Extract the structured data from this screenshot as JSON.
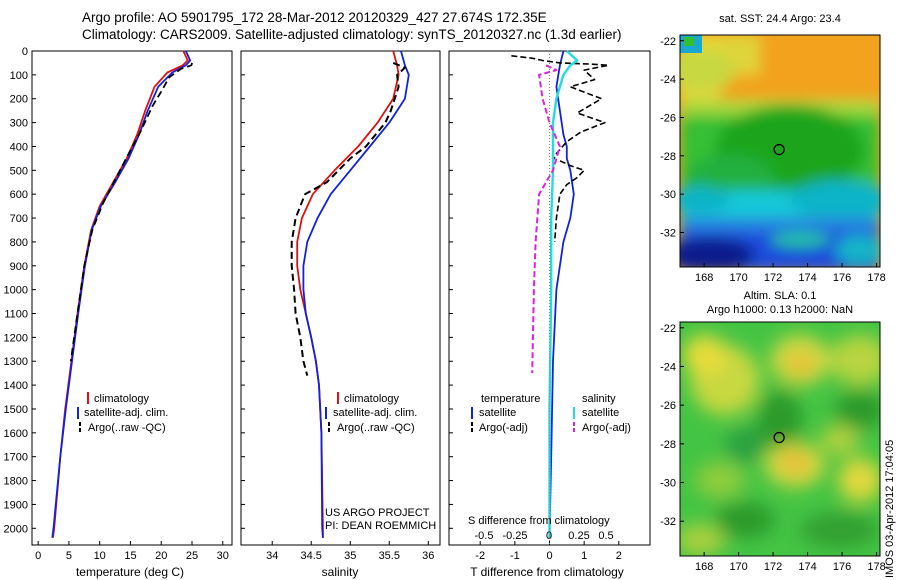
{
  "header": {
    "line1": "Argo profile: AO 5901795_172 28-Mar-2012 20120329_427 27.674S 172.35E",
    "line2": "Climatology: CARS2009. Satellite-adjusted climatology: synTS_20120327.nc (1.3d earlier)"
  },
  "side_stamp": "IMOS 03-Apr-2012 17:04:05",
  "colors": {
    "climatology": "#dd1111",
    "satellite": "#1122dd",
    "argo": "#000000",
    "salinity_satellite": "#22dddd",
    "salinity_argo": "#dd22dd",
    "map_orange": "#f2a21b",
    "map_yellow": "#e8d83a",
    "map_green": "#36c036",
    "map_cyan": "#18c8d8",
    "map_blue": "#1f4cdc",
    "map_navy": "#0a1e8c"
  },
  "depth_axis": {
    "ticks": [
      0,
      100,
      200,
      300,
      400,
      500,
      600,
      700,
      800,
      900,
      1000,
      1100,
      1200,
      1300,
      1400,
      1500,
      1600,
      1700,
      1800,
      1900,
      2000
    ],
    "range": [
      0,
      2070
    ]
  },
  "chart_data": [
    {
      "type": "line",
      "id": "temperature",
      "xlabel": "temperature (deg C)",
      "xlim": [
        -1,
        31.5
      ],
      "xticks": [
        0,
        5,
        10,
        15,
        20,
        25,
        30
      ],
      "legend": [
        "climatology",
        "satellite-adj. clim.",
        "Argo(..raw -QC)"
      ],
      "series": [
        {
          "name": "climatology",
          "x": [
            23.6,
            24.3,
            23.5,
            21.0,
            18.9,
            17.4,
            16.1,
            14.4,
            12.2,
            10.0,
            8.6,
            7.5,
            6.4,
            5.4,
            4.4,
            3.6,
            2.6,
            2.4
          ],
          "y": [
            0,
            40,
            60,
            90,
            150,
            250,
            350,
            450,
            550,
            650,
            750,
            900,
            1100,
            1300,
            1500,
            1700,
            2000,
            2040
          ]
        },
        {
          "name": "satellite-adj. clim.",
          "x": [
            24.0,
            24.7,
            24.0,
            21.8,
            19.5,
            17.8,
            16.4,
            14.7,
            12.5,
            10.2,
            8.7,
            7.6,
            6.5,
            5.5,
            4.5,
            3.6,
            2.5,
            2.3
          ],
          "y": [
            0,
            40,
            60,
            90,
            150,
            250,
            350,
            450,
            550,
            650,
            750,
            900,
            1100,
            1300,
            1500,
            1700,
            2000,
            2040
          ]
        },
        {
          "name": "Argo(..raw -QC)",
          "x": [
            25.0,
            24.9,
            23.2,
            21.3,
            20.0,
            18.6,
            16.6,
            14.3,
            12.5,
            10.5,
            8.8,
            7.5,
            6.4,
            5.3
          ],
          "y": [
            50,
            60,
            75,
            110,
            170,
            230,
            340,
            450,
            540,
            640,
            750,
            900,
            1100,
            1300
          ]
        }
      ]
    },
    {
      "type": "line",
      "id": "salinity",
      "xlabel": "salinity",
      "xlim": [
        33.6,
        36.15
      ],
      "xticks": [
        34,
        34.5,
        35,
        35.5,
        36
      ],
      "legend": [
        "climatology",
        "satellite-adj. clim.",
        "Argo(..raw -QC)"
      ],
      "annotations": [
        "US ARGO PROJECT",
        "PI: DEAN ROEMMICH"
      ],
      "series": [
        {
          "name": "climatology",
          "x": [
            35.55,
            35.6,
            35.62,
            35.55,
            35.35,
            35.1,
            34.8,
            34.52,
            34.38,
            34.32,
            34.32,
            34.36,
            34.43,
            34.5,
            34.56,
            34.6,
            34.63,
            34.65,
            34.65
          ],
          "y": [
            0,
            60,
            100,
            200,
            300,
            400,
            500,
            600,
            700,
            800,
            900,
            1000,
            1100,
            1200,
            1300,
            1400,
            1600,
            2000,
            2040
          ]
        },
        {
          "name": "satellite-adj. clim.",
          "x": [
            35.65,
            35.7,
            35.75,
            35.7,
            35.5,
            35.25,
            35.0,
            34.75,
            34.58,
            34.45,
            34.4,
            34.4,
            34.43,
            34.5,
            34.56,
            34.6,
            34.63,
            34.64,
            34.65
          ],
          "y": [
            0,
            60,
            100,
            200,
            300,
            400,
            500,
            600,
            700,
            800,
            900,
            1000,
            1100,
            1200,
            1300,
            1400,
            1600,
            2000,
            2040
          ]
        },
        {
          "name": "Argo(..raw -QC)",
          "x": [
            35.55,
            35.7,
            35.6,
            35.62,
            35.52,
            35.45,
            35.2,
            35.0,
            34.7,
            34.42,
            34.3,
            34.25,
            34.25,
            34.28,
            34.3,
            34.36,
            34.4,
            34.45
          ],
          "y": [
            50,
            70,
            100,
            150,
            250,
            300,
            400,
            450,
            550,
            600,
            700,
            800,
            900,
            1000,
            1100,
            1200,
            1300,
            1360
          ]
        }
      ]
    },
    {
      "type": "line",
      "id": "difference",
      "xlabel": "T difference from climatology",
      "xlabel_top": "S difference from climatology",
      "xlim": [
        -2.9,
        2.9
      ],
      "xticks": [
        -2,
        -1,
        0,
        1,
        2
      ],
      "xticks_s": [
        "-0.5",
        "-0.25",
        "0",
        "0.25",
        "0.5"
      ],
      "legend_titles": [
        "temperature",
        "salinity"
      ],
      "legend": [
        "satellite",
        "Argo(-adj)",
        "satellite",
        "Argo(-adj)"
      ],
      "series": [
        {
          "name": "satellite",
          "x": [
            0.4,
            0.3,
            0.2,
            0.3,
            0.4,
            0.5,
            0.5,
            0.6,
            0.7,
            0.6,
            0.4,
            0.2,
            0.1,
            0.05,
            0.0
          ],
          "y": [
            0,
            60,
            150,
            250,
            350,
            400,
            450,
            500,
            600,
            700,
            800,
            1000,
            1300,
            1700,
            2040
          ]
        },
        {
          "name": "Argo(-adj)",
          "x": [
            -1.1,
            -0.5,
            -0.2,
            0.3,
            1.2,
            1.7,
            1.0,
            1.3,
            0.6,
            1.5,
            0.8,
            1.6,
            0.9,
            0.5,
            0.2,
            0.1
          ],
          "y": [
            20,
            30,
            40,
            50,
            55,
            60,
            80,
            120,
            150,
            200,
            260,
            300,
            340,
            380,
            430,
            460
          ]
        },
        {
          "name": "salinity satellite",
          "x": [
            0.5,
            0.8,
            0.6,
            0.4,
            0.2,
            0.1,
            0.1,
            0.1,
            0.05,
            0.05,
            0.0,
            0.0
          ],
          "y": [
            0,
            40,
            60,
            100,
            200,
            300,
            400,
            500,
            700,
            1000,
            1500,
            2040
          ]
        },
        {
          "name": "salinity Argo(-adj)",
          "x": [
            -0.1,
            0.2,
            -0.3,
            -0.2,
            0.0,
            0.3,
            0.1,
            -0.3,
            -0.4,
            -0.45,
            -0.5
          ],
          "y": [
            60,
            80,
            100,
            200,
            300,
            400,
            500,
            600,
            800,
            1000,
            1350
          ]
        },
        {
          "name": "Argo dashed deep",
          "x": [
            0.3,
            0.6,
            1.0,
            0.8,
            0.5,
            0.3,
            0.2,
            0.15
          ],
          "y": [
            460,
            480,
            500,
            530,
            560,
            600,
            700,
            800
          ]
        }
      ]
    },
    {
      "type": "heatmap",
      "id": "sst_map",
      "title": "sat. SST: 24.4  Argo: 23.4",
      "xticks": [
        168,
        170,
        172,
        174,
        176,
        178
      ],
      "yticks": [
        -22,
        -24,
        -26,
        -28,
        -30,
        -32
      ],
      "xlim": [
        166.6,
        178.2
      ],
      "ylim": [
        -33.8,
        -21.7
      ],
      "marker": [
        172.35,
        -27.674
      ]
    },
    {
      "type": "heatmap",
      "id": "sla_map",
      "title": "Altim. SLA: 0.1",
      "subtitle": "Argo h1000: 0.13 h2000: NaN",
      "xticks": [
        168,
        170,
        172,
        174,
        176,
        178
      ],
      "yticks": [
        -22,
        -24,
        -26,
        -28,
        -30,
        -32
      ],
      "xlim": [
        166.6,
        178.2
      ],
      "ylim": [
        -33.8,
        -21.7
      ],
      "marker": [
        172.35,
        -27.674
      ]
    }
  ]
}
